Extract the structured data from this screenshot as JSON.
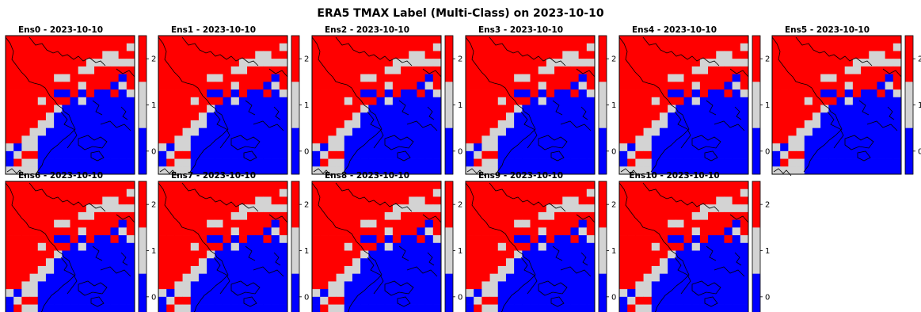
{
  "figure": {
    "title": "ERA5 TMAX Label (Multi-Class) on 2023-10-10"
  },
  "colors": {
    "class0": "#0000ff",
    "class1": "#d3d3d3",
    "class2": "#ff0000",
    "coast": "#000000"
  },
  "chart_data": {
    "type": "heatmap",
    "title": "ERA5 TMAX Label (Multi-Class) on 2023-10-10",
    "colorbar": {
      "ticks": [
        "0",
        "1",
        "2"
      ],
      "range": [
        0,
        2
      ],
      "classes": [
        0,
        1,
        2
      ]
    },
    "grid_rows_top_to_bottom": [
      "2222222222222222",
      "2222222222222221",
      "2222222222221122",
      "2222222222111111",
      "2222222221122222",
      "2222221122222202",
      "2222222221222012",
      "2222220020200201",
      "2222122201000000",
      "2222221000000000",
      "2222210000000000",
      "2222110000000000",
      "2221100000000000",
      "2211000000000000",
      "1011000000000000",
      "0122000000000000",
      "0211000000000000",
      "1111000000000000"
    ],
    "panels": [
      {
        "title": "Ens0 - 2023-10-10"
      },
      {
        "title": "Ens1 - 2023-10-10"
      },
      {
        "title": "Ens2 - 2023-10-10"
      },
      {
        "title": "Ens3 - 2023-10-10"
      },
      {
        "title": "Ens4 - 2023-10-10"
      },
      {
        "title": "Ens5 - 2023-10-10"
      },
      {
        "title": "Ens6 - 2023-10-10"
      },
      {
        "title": "Ens7 - 2023-10-10"
      },
      {
        "title": "Ens8 - 2023-10-10"
      },
      {
        "title": "Ens9 - 2023-10-10"
      },
      {
        "title": "Ens10 - 2023-10-10"
      }
    ]
  }
}
